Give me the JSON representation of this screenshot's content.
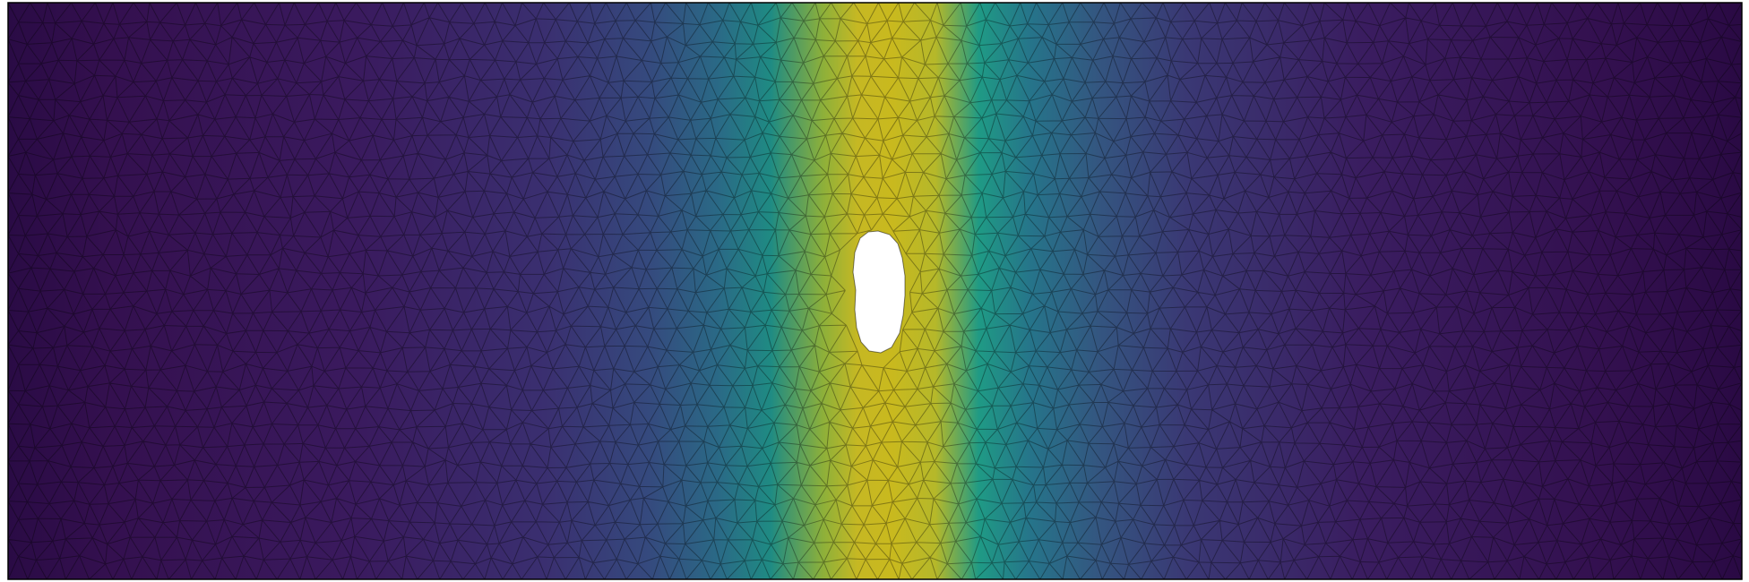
{
  "figure": {
    "kind": "finite-element mesh field plot",
    "colormap": "viridis",
    "colormap_stops": [
      "#440154",
      "#3b528b",
      "#21918c",
      "#5ec962",
      "#c8b81e"
    ],
    "mesh_color": "#000000",
    "background": "#ffffff",
    "hole_color": "#ffffff",
    "frame_color": "#000000",
    "has_title": false,
    "has_axes": false,
    "has_colorbar": false
  }
}
